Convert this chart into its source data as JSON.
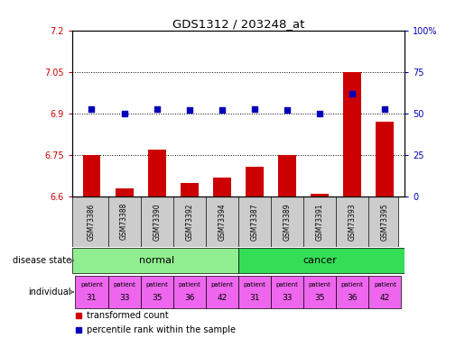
{
  "title": "GDS1312 / 203248_at",
  "samples": [
    "GSM73386",
    "GSM73388",
    "GSM73390",
    "GSM73392",
    "GSM73394",
    "GSM73387",
    "GSM73389",
    "GSM73391",
    "GSM73393",
    "GSM73395"
  ],
  "transformed_count": [
    6.75,
    6.63,
    6.77,
    6.65,
    6.67,
    6.71,
    6.75,
    6.61,
    7.05,
    6.87
  ],
  "percentile_rank": [
    53,
    50,
    53,
    52,
    52,
    53,
    52,
    50,
    62,
    53
  ],
  "ylim_left": [
    6.6,
    7.2
  ],
  "ylim_right": [
    0,
    100
  ],
  "yticks_left": [
    6.6,
    6.75,
    6.9,
    7.05,
    7.2
  ],
  "yticks_right": [
    0,
    25,
    50,
    75,
    100
  ],
  "ytick_labels_left": [
    "6.6",
    "6.75",
    "6.9",
    "7.05",
    "7.2"
  ],
  "ytick_labels_right": [
    "0",
    "25",
    "50",
    "75",
    "100%"
  ],
  "hlines": [
    6.75,
    6.9,
    7.05
  ],
  "disease_colors": {
    "normal": "#90EE90",
    "cancer": "#33DD55"
  },
  "individual_color": "#EE66EE",
  "bar_color": "#CC0000",
  "dot_color": "#0000BB",
  "bar_width": 0.55,
  "bg_color": "#FFFFFF",
  "tick_label_color_left": "#CC0000",
  "tick_label_color_right": "#0000BB",
  "xticklabel_bg": "#CCCCCC",
  "individual": [
    "31",
    "33",
    "35",
    "36",
    "42",
    "31",
    "33",
    "35",
    "36",
    "42"
  ],
  "legend_items": [
    {
      "label": "transformed count",
      "color": "#CC0000"
    },
    {
      "label": "percentile rank within the sample",
      "color": "#0000BB"
    }
  ]
}
